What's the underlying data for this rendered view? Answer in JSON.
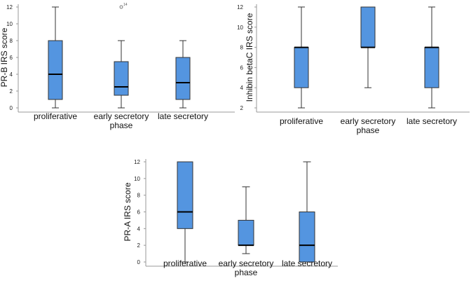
{
  "chart_data": [
    {
      "type": "boxplot",
      "ylabel": "PR-B IRS score",
      "ylim": [
        0,
        12
      ],
      "yticks": [
        0,
        2,
        4,
        6,
        8,
        10,
        12
      ],
      "categories": [
        [
          "proliferative"
        ],
        [
          "early secretory",
          "phase"
        ],
        [
          "late secretory"
        ]
      ],
      "boxes": [
        {
          "min": 0,
          "q1": 1,
          "median": 4,
          "q3": 8,
          "max": 12
        },
        {
          "min": 0,
          "q1": 1.5,
          "median": 2.5,
          "q3": 5.5,
          "max": 8,
          "outliers": [
            {
              "value": 12,
              "label": "14"
            }
          ]
        },
        {
          "min": 0,
          "q1": 1,
          "median": 3,
          "q3": 6,
          "max": 8
        }
      ]
    },
    {
      "type": "boxplot",
      "ylabel": "Inhibin betaC IRS score",
      "ylim": [
        2,
        12
      ],
      "yticks": [
        2,
        4,
        6,
        8,
        10,
        12
      ],
      "categories": [
        [
          "proliferative"
        ],
        [
          "early secretory",
          "phase"
        ],
        [
          "late secretory"
        ]
      ],
      "boxes": [
        {
          "min": 2,
          "q1": 4,
          "median": 8,
          "q3": 8,
          "max": 12
        },
        {
          "min": 4,
          "q1": 8,
          "median": 8,
          "q3": 12,
          "max": 12
        },
        {
          "min": 2,
          "q1": 4,
          "median": 8,
          "q3": 8,
          "max": 12
        }
      ]
    },
    {
      "type": "boxplot",
      "ylabel": "PR-A IRS score",
      "ylim": [
        0,
        12
      ],
      "yticks": [
        0,
        2,
        4,
        6,
        8,
        10,
        12
      ],
      "categories": [
        [
          "proliferative"
        ],
        [
          "early secretory",
          "phase"
        ],
        [
          "late secretory"
        ]
      ],
      "boxes": [
        {
          "min": 0,
          "q1": 4,
          "median": 6,
          "q3": 12,
          "max": 12
        },
        {
          "min": 1,
          "q1": 2,
          "median": 2,
          "q3": 5,
          "max": 9
        },
        {
          "min": 0,
          "q1": 0,
          "median": 2,
          "q3": 6,
          "max": 12
        }
      ]
    }
  ],
  "colors": {
    "box_fill": "#5495e0",
    "box_stroke": "#333333",
    "axis": "#999999",
    "median": "#000000"
  }
}
